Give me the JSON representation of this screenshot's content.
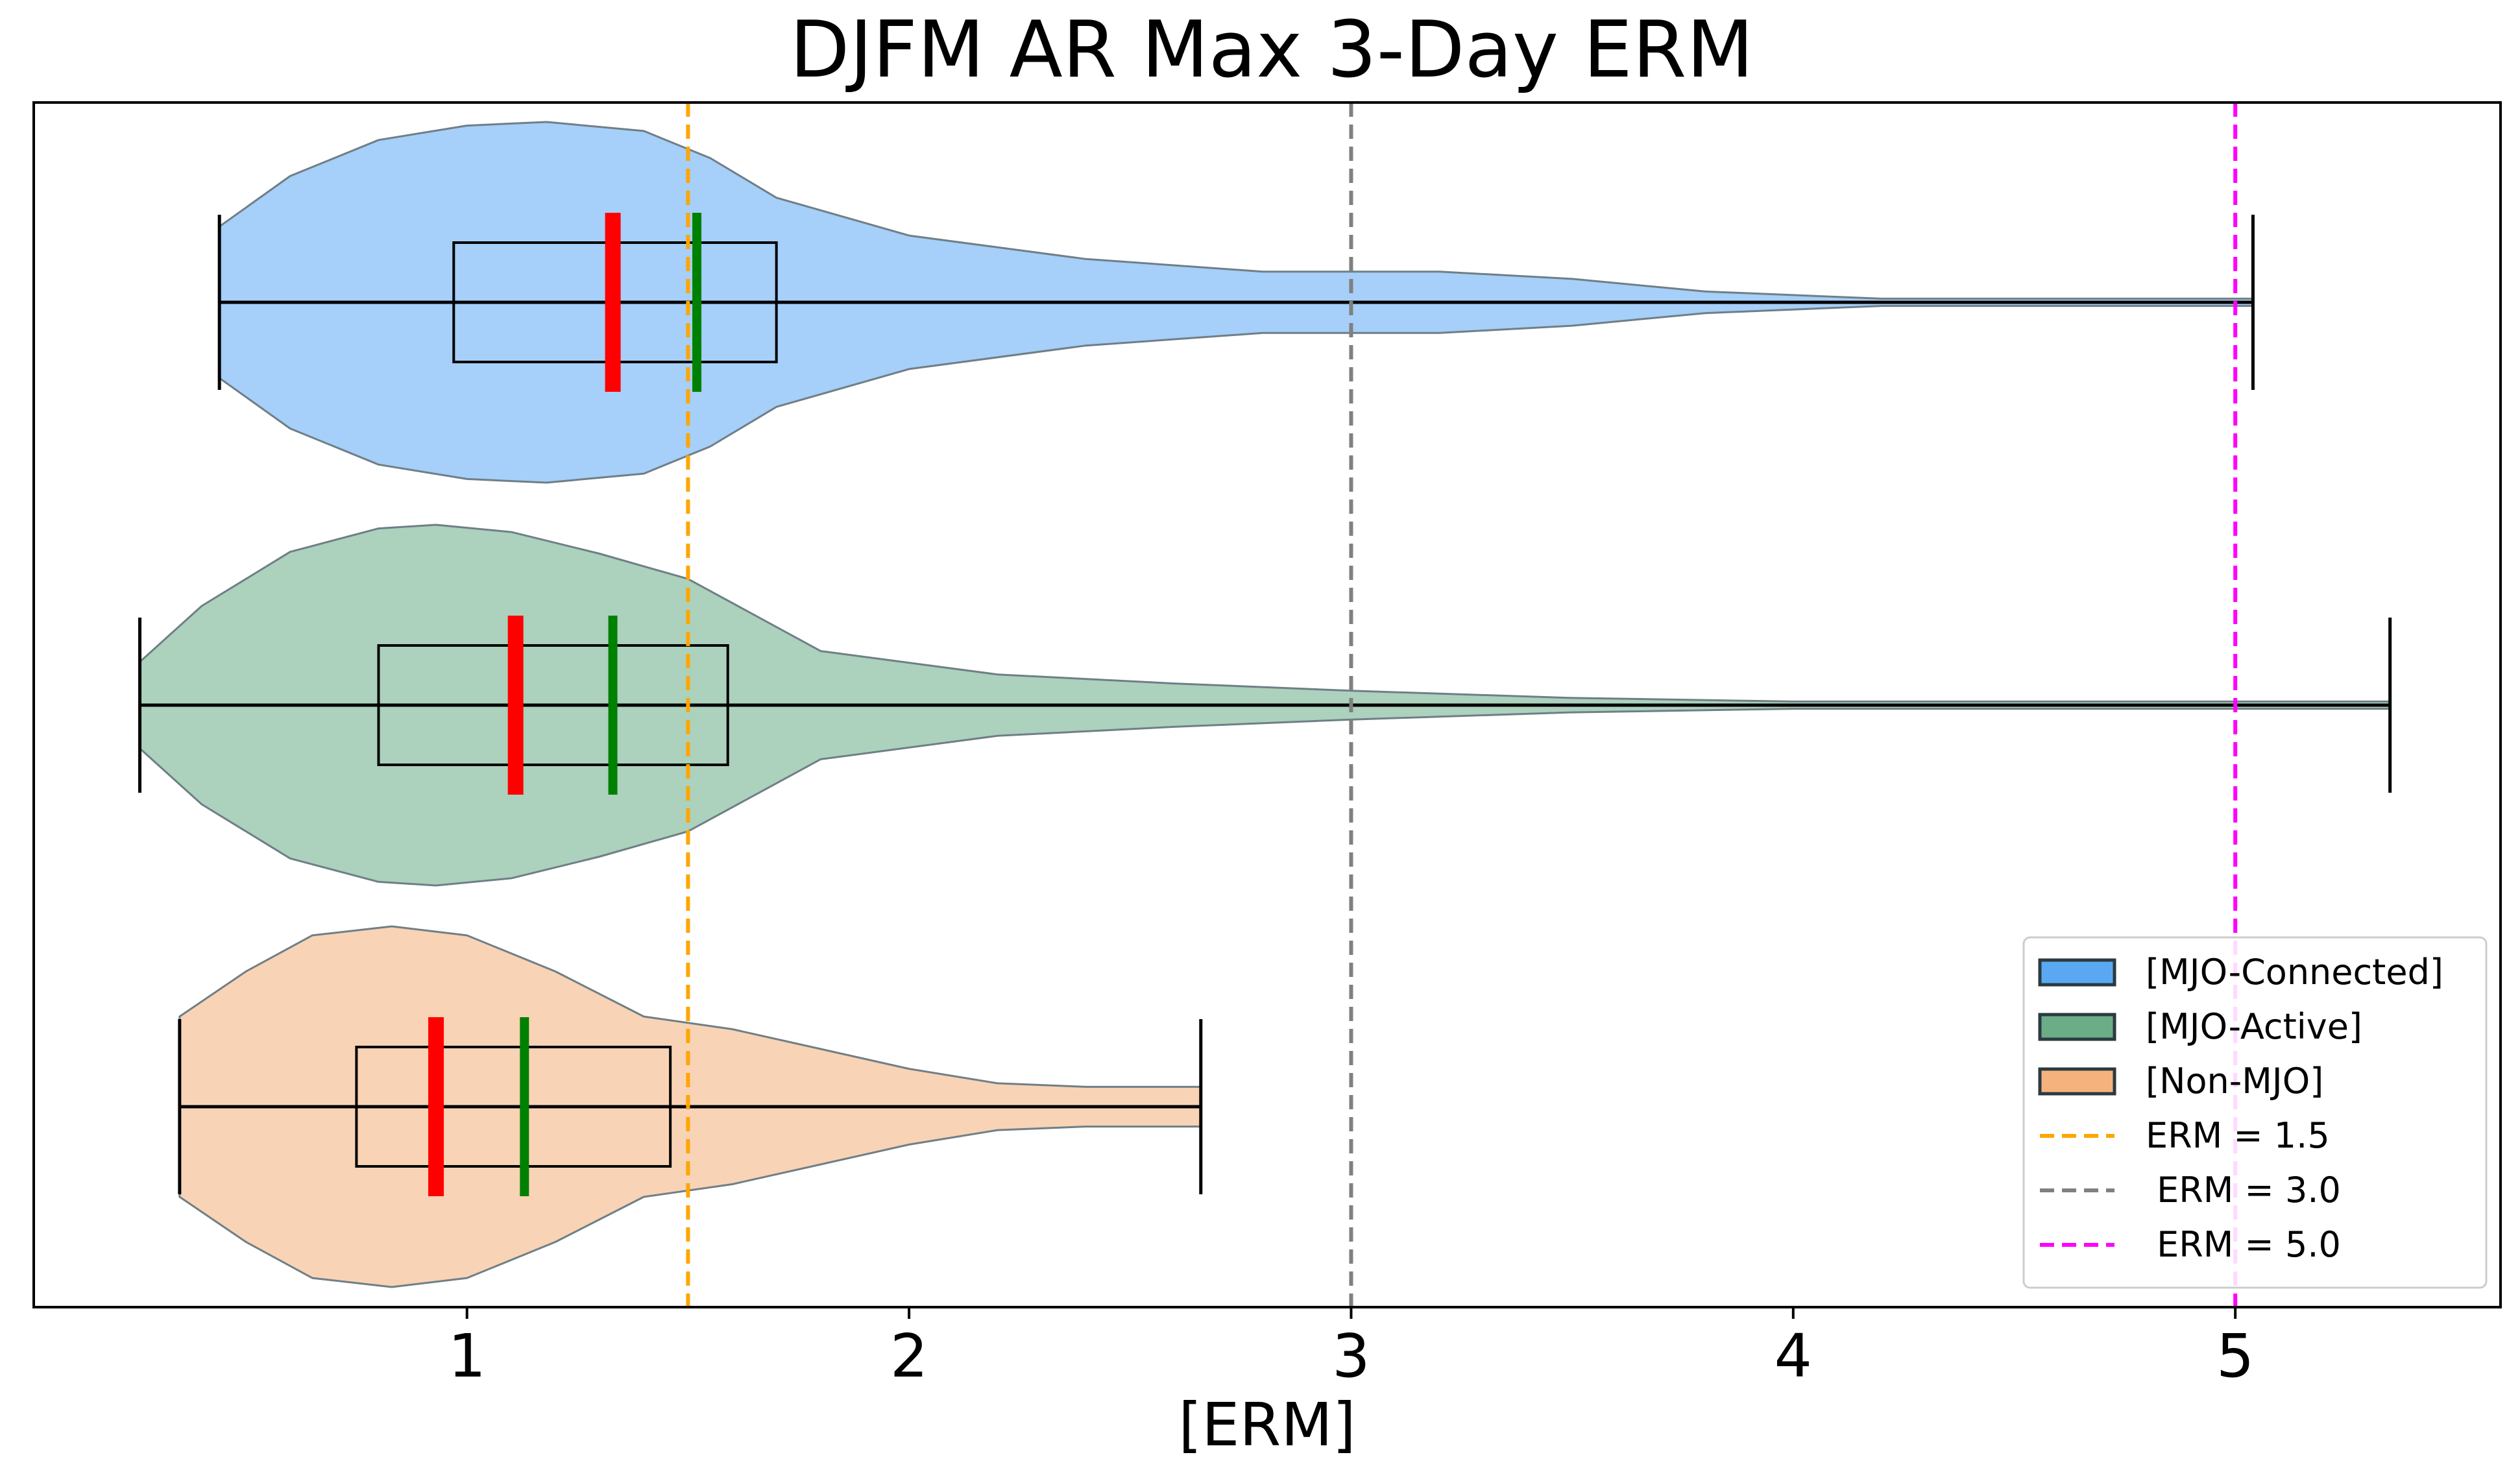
{
  "chart_data": {
    "type": "violin",
    "orientation": "horizontal",
    "title": "DJFM AR Max 3-Day ERM",
    "xlabel": "[ERM]",
    "ylabel": "",
    "xlim": [
      0.02,
      5.6
    ],
    "xticks": [
      1,
      2,
      3,
      4,
      5
    ],
    "xtick_labels": [
      "1",
      "2",
      "3",
      "4",
      "5"
    ],
    "grid": false,
    "legend_position": "lower-right",
    "series": [
      {
        "name": "[MJO-Connected]",
        "color": "#a6cff9",
        "legend_color": "#5aa8f2",
        "min": 0.44,
        "max": 5.04,
        "q1": 0.97,
        "q3": 1.7,
        "median": 1.33,
        "mean": 1.52,
        "density": [
          [
            0.44,
            0.42
          ],
          [
            0.6,
            0.7
          ],
          [
            0.8,
            0.9
          ],
          [
            1.0,
            0.98
          ],
          [
            1.18,
            1.0
          ],
          [
            1.4,
            0.95
          ],
          [
            1.55,
            0.8
          ],
          [
            1.7,
            0.58
          ],
          [
            2.0,
            0.37
          ],
          [
            2.4,
            0.24
          ],
          [
            2.8,
            0.17
          ],
          [
            3.0,
            0.17
          ],
          [
            3.2,
            0.17
          ],
          [
            3.5,
            0.13
          ],
          [
            3.8,
            0.06
          ],
          [
            4.2,
            0.02
          ],
          [
            5.04,
            0.02
          ]
        ]
      },
      {
        "name": "[MJO-Active]",
        "color": "#acd1bd",
        "legend_color": "#6aad86",
        "min": 0.26,
        "max": 5.35,
        "q1": 0.8,
        "q3": 1.59,
        "median": 1.11,
        "mean": 1.33,
        "density": [
          [
            0.26,
            0.24
          ],
          [
            0.4,
            0.55
          ],
          [
            0.6,
            0.85
          ],
          [
            0.8,
            0.98
          ],
          [
            0.93,
            1.0
          ],
          [
            1.1,
            0.96
          ],
          [
            1.3,
            0.84
          ],
          [
            1.5,
            0.7
          ],
          [
            1.8,
            0.3
          ],
          [
            2.2,
            0.17
          ],
          [
            2.6,
            0.12
          ],
          [
            3.0,
            0.08
          ],
          [
            3.5,
            0.04
          ],
          [
            4.0,
            0.02
          ],
          [
            5.35,
            0.02
          ]
        ]
      },
      {
        "name": "[Non-MJO]",
        "color": "#f8d3b5",
        "legend_color": "#f6b27c",
        "min": 0.35,
        "max": 2.66,
        "q1": 0.75,
        "q3": 1.46,
        "median": 0.93,
        "mean": 1.13,
        "density": [
          [
            0.35,
            0.5
          ],
          [
            0.5,
            0.75
          ],
          [
            0.65,
            0.95
          ],
          [
            0.83,
            1.0
          ],
          [
            1.0,
            0.95
          ],
          [
            1.2,
            0.75
          ],
          [
            1.4,
            0.5
          ],
          [
            1.6,
            0.43
          ],
          [
            1.8,
            0.32
          ],
          [
            2.0,
            0.21
          ],
          [
            2.2,
            0.13
          ],
          [
            2.4,
            0.11
          ],
          [
            2.66,
            0.11
          ]
        ]
      }
    ],
    "reference_lines": [
      {
        "label": "ERM = 1.5",
        "x": 1.5,
        "color": "#ffa500"
      },
      {
        "label": " ERM = 3.0",
        "x": 3.0,
        "color": "#808080"
      },
      {
        "label": " ERM = 5.0",
        "x": 5.0,
        "color": "#ff00ff"
      }
    ],
    "median_color": "#ff0000",
    "mean_color": "#008000"
  }
}
